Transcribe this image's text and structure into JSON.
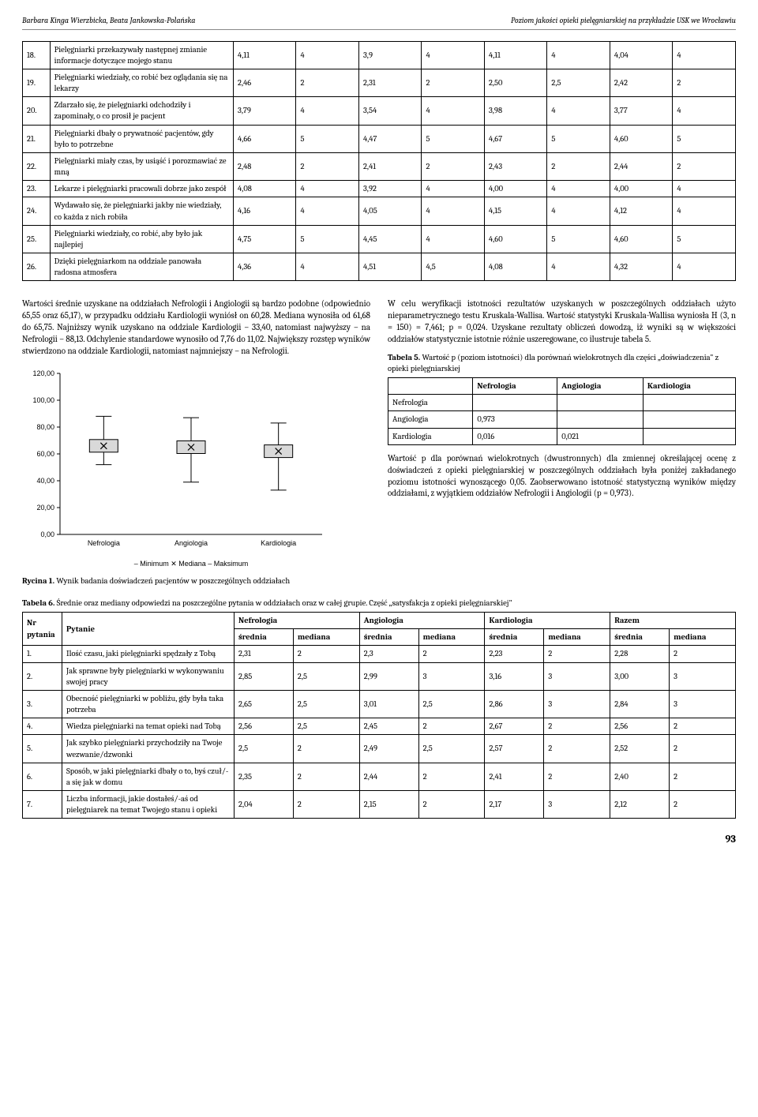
{
  "header": {
    "left": "Barbara Kinga Wierzbicka, Beata Jankowska-Polańska",
    "right": "Poziom jakości opieki pielęgniarskiej na przykładzie USK we Wrocławiu"
  },
  "table1_rows": [
    {
      "n": "18.",
      "q": "Pielęgniarki przekazywały następnej zmianie informacje dotyczące mojego stanu",
      "v": [
        "4,11",
        "4",
        "3,9",
        "4",
        "4,11",
        "4",
        "4,04",
        "4"
      ]
    },
    {
      "n": "19.",
      "q": "Pielęgniarki wiedziały, co robić bez oglądania się na lekarzy",
      "v": [
        "2,46",
        "2",
        "2,31",
        "2",
        "2,50",
        "2,5",
        "2,42",
        "2"
      ]
    },
    {
      "n": "20.",
      "q": "Zdarzało się, że pielęgniarki odchodziły i zapominały, o co prosił je pacjent",
      "v": [
        "3,79",
        "4",
        "3,54",
        "4",
        "3,98",
        "4",
        "3,77",
        "4"
      ]
    },
    {
      "n": "21.",
      "q": "Pielęgniarki dbały o prywatność pacjentów, gdy było to potrzebne",
      "v": [
        "4,66",
        "5",
        "4,47",
        "5",
        "4,67",
        "5",
        "4,60",
        "5"
      ]
    },
    {
      "n": "22.",
      "q": "Pielęgniarki miały czas, by usiąść i porozmawiać ze mną",
      "v": [
        "2,48",
        "2",
        "2,41",
        "2",
        "2,43",
        "2",
        "2,44",
        "2"
      ]
    },
    {
      "n": "23.",
      "q": "Lekarze i pielęgniarki pracowali dobrze jako zespół",
      "v": [
        "4,08",
        "4",
        "3,92",
        "4",
        "4,00",
        "4",
        "4,00",
        "4"
      ]
    },
    {
      "n": "24.",
      "q": "Wydawało się, że pielęgniarki jakby nie wiedziały, co każda z nich robiła",
      "v": [
        "4,16",
        "4",
        "4,05",
        "4",
        "4,15",
        "4",
        "4,12",
        "4"
      ]
    },
    {
      "n": "25.",
      "q": "Pielęgniarki wiedziały, co robić, aby było jak najlepiej",
      "v": [
        "4,75",
        "5",
        "4,45",
        "4",
        "4,60",
        "5",
        "4,60",
        "5"
      ]
    },
    {
      "n": "26.",
      "q": "Dzięki pielęgniarkom na oddziale panowała radosna atmosfera",
      "v": [
        "4,36",
        "4",
        "4,51",
        "4,5",
        "4,08",
        "4",
        "4,32",
        "4"
      ]
    }
  ],
  "text_left": "Wartości średnie uzyskane na oddziałach Nefrologii i Angiologii są bardzo podobne (odpowiednio 65,55 oraz 65,17), w przypadku oddziału Kardiologii wyniósł on 60,28. Mediana wynosiła od 61,68 do 65,75. Najniższy wynik uzyskano na oddziale Kardiologii – 33,40, natomiast najwyższy – na Nefrologii – 88,13. Odchylenie standardowe wynosiło od 7,76 do 11,02. Największy rozstęp wyników stwierdzono na oddziale Kardiologii, natomiast najmniejszy – na Nefrologii.",
  "text_right_1": "W celu weryfikacji istotności rezultatów uzyskanych w poszczególnych oddziałach użyto nieparametrycznego testu Kruskala-Wallisa. Wartość statystyki Kruskala-Wallisa wyniosła H (3, n = 150) = 7,461; p = 0,024. Uzyskane rezultaty obliczeń dowodzą, iż wyniki są w większości oddziałów statystycznie istotnie różnie uszeregowane, co ilustruje tabela 5.",
  "tab5_caption": "Tabela 5. Wartość p (poziom istotności) dla porównań wielokrotnych dla części „doświadczenia\" z opieki pielęgniarskiej",
  "tab5": {
    "cols": [
      "",
      "Nefrologia",
      "Angiologia",
      "Kardiologia"
    ],
    "rows": [
      [
        "Nefrologia",
        "",
        "",
        ""
      ],
      [
        "Angiologia",
        "0,973",
        "",
        ""
      ],
      [
        "Kardiologia",
        "0,016",
        "0,021",
        ""
      ]
    ]
  },
  "text_right_2": "Wartość p dla porównań wielokrotnych (dwustronnych) dla zmiennej określającej ocenę z doświadczeń z opieki pielęgniarskiej w poszczególnych oddziałach była poniżej zakładanego poziomu istotności wynoszącego 0,05. Zaobserwowano istotność statystyczną wyników między oddziałami, z wyjątkiem oddziałów Nefrologii i Angiologii (p = 0,973).",
  "chart": {
    "ylabels": [
      "0,00",
      "20,00",
      "40,00",
      "60,00",
      "80,00",
      "100,00",
      "120,00"
    ],
    "ymax": 120,
    "series": [
      {
        "label": "Nefrologia",
        "min": 52,
        "median": 66,
        "max": 88
      },
      {
        "label": "Angiologia",
        "min": 39,
        "median": 65,
        "max": 87
      },
      {
        "label": "Kardiologia",
        "min": 33,
        "median": 62,
        "max": 83
      }
    ],
    "legend": [
      "– Minimum",
      "✕ Mediana",
      "– Maksimum"
    ],
    "box_fill": "#d9d9d9",
    "line_color": "#000000"
  },
  "rycina": "Rycina 1. Wynik badania doświadczeń pacjentów w poszczególnych oddziałach",
  "tab6_caption": "Tabela 6. Średnie oraz mediany odpowiedzi na poszczególne pytania w oddziałach oraz w całej grupie. Część „satysfakcja z opieki pielęgniarskiej\"",
  "tab6_head1": [
    "Nr pytania",
    "Pytanie",
    "Nefrologia",
    "Angiologia",
    "Kardiologia",
    "Razem"
  ],
  "tab6_head2": [
    "średnia",
    "mediana",
    "średnia",
    "mediana",
    "średnia",
    "mediana",
    "średnia",
    "mediana"
  ],
  "tab6_rows": [
    {
      "n": "1.",
      "q": "Ilość czasu, jaki pielęgniarki spędzały z Tobą",
      "v": [
        "2,31",
        "2",
        "2,3",
        "2",
        "2,23",
        "2",
        "2,28",
        "2"
      ]
    },
    {
      "n": "2.",
      "q": "Jak sprawne były pielęgniarki w wykonywaniu swojej pracy",
      "v": [
        "2,85",
        "2,5",
        "2,99",
        "3",
        "3,16",
        "3",
        "3,00",
        "3"
      ]
    },
    {
      "n": "3.",
      "q": "Obecność pielęgniarki w pobliżu, gdy była taka potrzeba",
      "v": [
        "2,65",
        "2,5",
        "3,01",
        "2,5",
        "2,86",
        "3",
        "2,84",
        "3"
      ]
    },
    {
      "n": "4.",
      "q": "Wiedza pielęgniarki na temat opieki nad Tobą",
      "v": [
        "2,56",
        "2,5",
        "2,45",
        "2",
        "2,67",
        "2",
        "2,56",
        "2"
      ]
    },
    {
      "n": "5.",
      "q": "Jak szybko pielęgniarki przychodziły na Twoje wezwanie/dzwonki",
      "v": [
        "2,5",
        "2",
        "2,49",
        "2,5",
        "2,57",
        "2",
        "2,52",
        "2"
      ]
    },
    {
      "n": "6.",
      "q": "Sposób, w jaki pielęgniarki dbały o to, byś czuł/-a się jak w domu",
      "v": [
        "2,35",
        "2",
        "2,44",
        "2",
        "2,41",
        "2",
        "2,40",
        "2"
      ]
    },
    {
      "n": "7.",
      "q": "Liczba informacji, jakie dostałeś/-aś od pielęgniarek na temat Twojego stanu i opieki",
      "v": [
        "2,04",
        "2",
        "2,15",
        "2",
        "2,17",
        "3",
        "2,12",
        "2"
      ]
    }
  ],
  "page_number": "93"
}
